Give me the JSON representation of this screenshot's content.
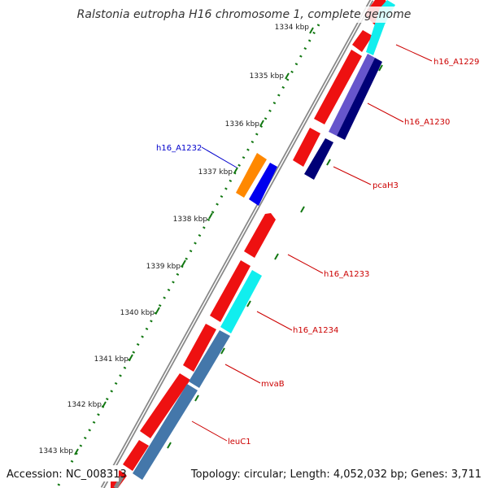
{
  "title": "Ralstonia eutropha H16 chromosome 1, complete genome",
  "footer": {
    "accession": "Accession: NC_008313",
    "topology": "Topology: circular; Length: 4,052,032 bp; Genes: 3,711"
  },
  "scale": {
    "labels": [
      "1334 kbp",
      "1335 kbp",
      "1336 kbp",
      "1337 kbp",
      "1338 kbp",
      "1339 kbp",
      "1340 kbp",
      "1341 kbp",
      "1342 kbp",
      "1343 kbp"
    ]
  },
  "genes": [
    {
      "name": "h16_A1229",
      "color": "#cc0000"
    },
    {
      "name": "h16_A1230",
      "color": "#cc0000"
    },
    {
      "name": "pcaH3",
      "color": "#cc0000"
    },
    {
      "name": "h16_A1232",
      "color": "#0000cc"
    },
    {
      "name": "h16_A1233",
      "color": "#cc0000"
    },
    {
      "name": "h16_A1234",
      "color": "#cc0000"
    },
    {
      "name": "mvaB",
      "color": "#cc0000"
    },
    {
      "name": "leuC1",
      "color": "#cc0000"
    }
  ],
  "colors": {
    "cds": "#ee1111",
    "cyan": "#11eeee",
    "navy": "#000077",
    "slate_blue": "#6655cc",
    "steel_blue": "#4477aa",
    "orange": "#ff8800",
    "blue": "#0000ee",
    "backbone": "#888888",
    "ticks": "#117711"
  }
}
